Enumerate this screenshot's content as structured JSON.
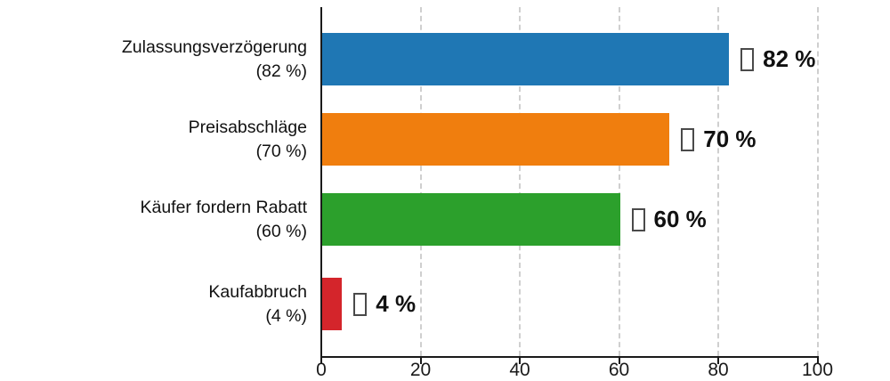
{
  "chart_data": {
    "type": "bar",
    "orientation": "horizontal",
    "title": "",
    "categories": [
      "Zulassungsverzögerung",
      "Preisabschläge",
      "Käufer fordern Rabatt",
      "Kaufabbruch"
    ],
    "category_sublabels": [
      "(82 %)",
      "(70 %)",
      "(60 %)",
      "(4 %)"
    ],
    "values": [
      82,
      70,
      60,
      4
    ],
    "value_labels": [
      "82 %",
      "70 %",
      "60 %",
      "4 %"
    ],
    "value_label_prefix": "missing-glyph-box",
    "bar_colors": [
      "#1f77b4",
      "#f07e0e",
      "#2ca02c",
      "#d4252b"
    ],
    "x_ticks": [
      0,
      20,
      40,
      60,
      80,
      100
    ],
    "x_tick_labels": [
      "0",
      "20",
      "40",
      "60",
      "80",
      "100"
    ],
    "xlabel": "",
    "ylabel": "",
    "xlim": [
      0,
      100
    ],
    "legend": "none",
    "grid": {
      "vertical": true,
      "style": "dashed",
      "color": "#cfcfcf"
    },
    "axis_color": "#1a1a1a",
    "text_color": "#111111",
    "background": "#ffffff"
  }
}
